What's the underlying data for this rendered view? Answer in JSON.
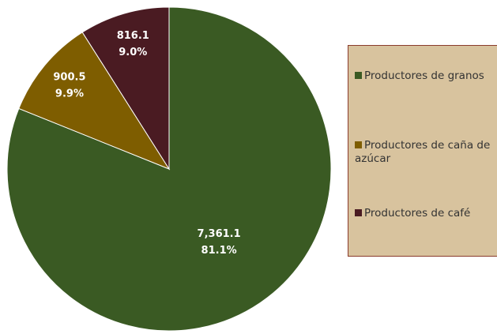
{
  "chart_data": {
    "type": "pie",
    "categories": [
      "Productores de granos",
      "Productores de caña de azúcar",
      "Productores de café"
    ],
    "values": [
      7361.1,
      900.5,
      816.1
    ],
    "value_labels": [
      "7,361.1",
      "900.5",
      "816.1"
    ],
    "percentages": [
      81.1,
      9.9,
      9.0
    ],
    "percentage_labels": [
      "81.1%",
      "9.9%",
      "9.0%"
    ],
    "colors": [
      "#3a5a23",
      "#7e5d00",
      "#4a1b22"
    ],
    "legend": "right"
  }
}
